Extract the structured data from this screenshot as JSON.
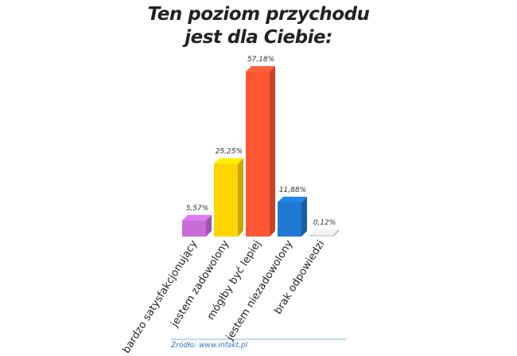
{
  "chart_data": {
    "type": "bar3d",
    "title": "Ten poziom przychodu jest dla Ciebie:",
    "categories": [
      "bardzo satysfakcjonujący",
      "jestem zadowolony",
      "mógłby być lepiej",
      "jestem niezadowolony",
      "brak odpowiedzi"
    ],
    "values": [
      5.57,
      25.25,
      57.18,
      11.88,
      0.12
    ],
    "value_labels": [
      "5,57%",
      "25,25%",
      "57,18%",
      "11,88%",
      "0,12%"
    ],
    "colors": [
      "#c86dd8",
      "#ffd500",
      "#ff5733",
      "#1f78d1",
      "#d8d8d8"
    ],
    "source": "Źródło: www.infakt.pl"
  }
}
